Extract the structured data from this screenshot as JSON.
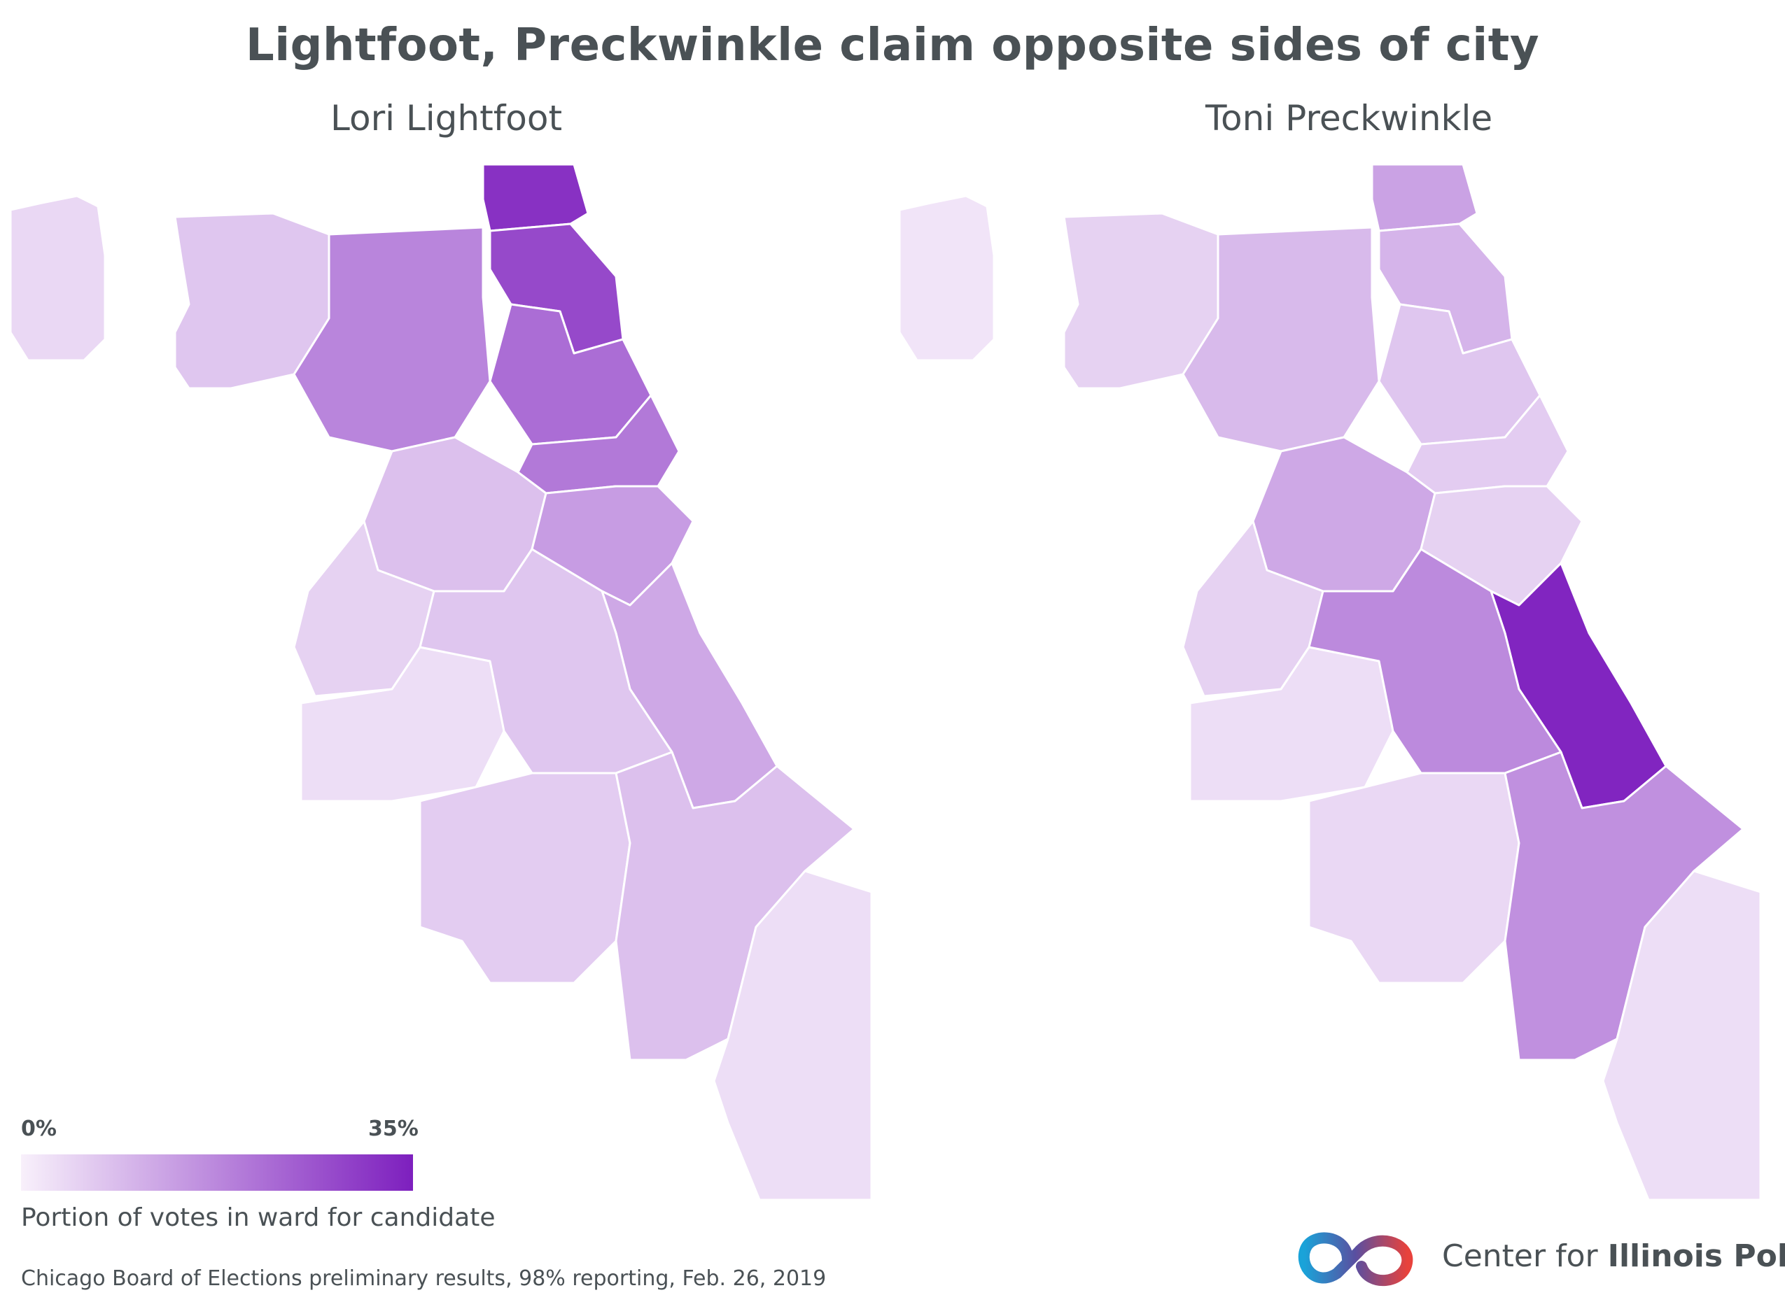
{
  "title": "Lightfoot, Preckwinkle claim opposite sides of city",
  "maps": [
    {
      "name": "Lori Lightfoot",
      "regions": [
        {
          "id": "far-northwest",
          "share": 0.04
        },
        {
          "id": "northwest",
          "share": 0.07
        },
        {
          "id": "north-central",
          "share": 0.18
        },
        {
          "id": "north-lakefront-a",
          "share": 0.32
        },
        {
          "id": "north-lakefront-b",
          "share": 0.28
        },
        {
          "id": "lakeview",
          "share": 0.22
        },
        {
          "id": "lincoln-park",
          "share": 0.2
        },
        {
          "id": "west-central",
          "share": 0.08
        },
        {
          "id": "near-north",
          "share": 0.14
        },
        {
          "id": "west-side",
          "share": 0.05
        },
        {
          "id": "southwest",
          "share": 0.03
        },
        {
          "id": "south-lakefront",
          "share": 0.12
        },
        {
          "id": "south-central",
          "share": 0.07
        },
        {
          "id": "far-southwest",
          "share": 0.06
        },
        {
          "id": "far-south",
          "share": 0.08
        },
        {
          "id": "southeast",
          "share": 0.03
        }
      ]
    },
    {
      "name": "Toni Preckwinkle",
      "regions": [
        {
          "id": "far-northwest",
          "share": 0.02
        },
        {
          "id": "northwest",
          "share": 0.05
        },
        {
          "id": "north-central",
          "share": 0.09
        },
        {
          "id": "north-lakefront-a",
          "share": 0.13
        },
        {
          "id": "north-lakefront-b",
          "share": 0.1
        },
        {
          "id": "lakeview",
          "share": 0.07
        },
        {
          "id": "lincoln-park",
          "share": 0.06
        },
        {
          "id": "west-central",
          "share": 0.12
        },
        {
          "id": "near-north",
          "share": 0.05
        },
        {
          "id": "west-side",
          "share": 0.05
        },
        {
          "id": "southwest",
          "share": 0.03
        },
        {
          "id": "south-lakefront",
          "share": 0.34
        },
        {
          "id": "south-central",
          "share": 0.17
        },
        {
          "id": "far-southwest",
          "share": 0.04
        },
        {
          "id": "far-south",
          "share": 0.16
        },
        {
          "id": "southeast",
          "share": 0.03
        }
      ]
    }
  ],
  "legend": {
    "min_label": "0%",
    "max_label": "35%",
    "min_value": 0,
    "max_value": 0.35,
    "color_low": "#f8f0fb",
    "color_high": "#7d1fbe",
    "caption": "Portion of votes in ward for candidate"
  },
  "source": "Chicago Board of Elections preliminary results, 98% reporting, Feb. 26, 2019",
  "brand": {
    "name_light": "Center for ",
    "name_bold": "Illinois Politics",
    "color_blue": "#1aa3d9",
    "color_red": "#e8423c"
  }
}
